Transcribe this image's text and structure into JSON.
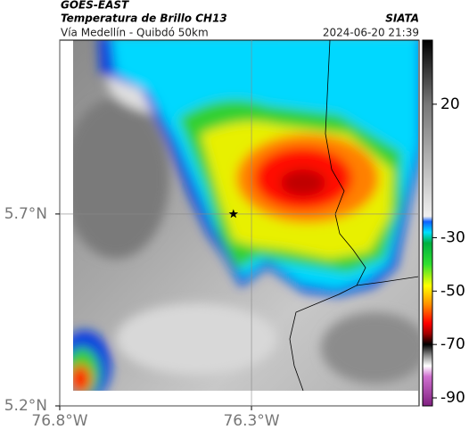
{
  "header": {
    "source": "GOES-EAST",
    "title": "Temperatura de Brillo CH13",
    "subtitle": "Vía Medellín - Quibdó 50km",
    "credit": "SIATA",
    "timestamp": "2024-06-20 21:39"
  },
  "map": {
    "xlim": [
      -76.8,
      -75.863
    ],
    "ylim": [
      5.2,
      6.153
    ],
    "xticks": [
      {
        "value": -76.8,
        "label": "76.8°W"
      },
      {
        "value": -76.3,
        "label": "76.3°W"
      }
    ],
    "yticks": [
      {
        "value": 5.2,
        "label": "5.2°N"
      },
      {
        "value": 5.7,
        "label": "5.7°N"
      }
    ],
    "grid": true,
    "marker": {
      "lon": -76.347,
      "lat": 5.7
    }
  },
  "colorbar": {
    "lim": [
      -93,
      44
    ],
    "ticks": [
      20,
      -30,
      -50,
      -70,
      -90
    ],
    "colormap": [
      {
        "value": 44,
        "color": "#000000"
      },
      {
        "value": 20,
        "color": "#777777"
      },
      {
        "value": -22,
        "color": "#f0f0f0"
      },
      {
        "value": -24,
        "color": "#1060ff"
      },
      {
        "value": -28,
        "color": "#00e0ff"
      },
      {
        "value": -32,
        "color": "#00b040"
      },
      {
        "value": -40,
        "color": "#30e030"
      },
      {
        "value": -48,
        "color": "#ffff00"
      },
      {
        "value": -55,
        "color": "#ff9000"
      },
      {
        "value": -62,
        "color": "#ff0000"
      },
      {
        "value": -66,
        "color": "#a00000"
      },
      {
        "value": -70,
        "color": "#000000"
      },
      {
        "value": -74,
        "color": "#888888"
      },
      {
        "value": -78,
        "color": "#ffffff"
      },
      {
        "value": -82,
        "color": "#d070d0"
      },
      {
        "value": -93,
        "color": "#802080"
      }
    ]
  }
}
